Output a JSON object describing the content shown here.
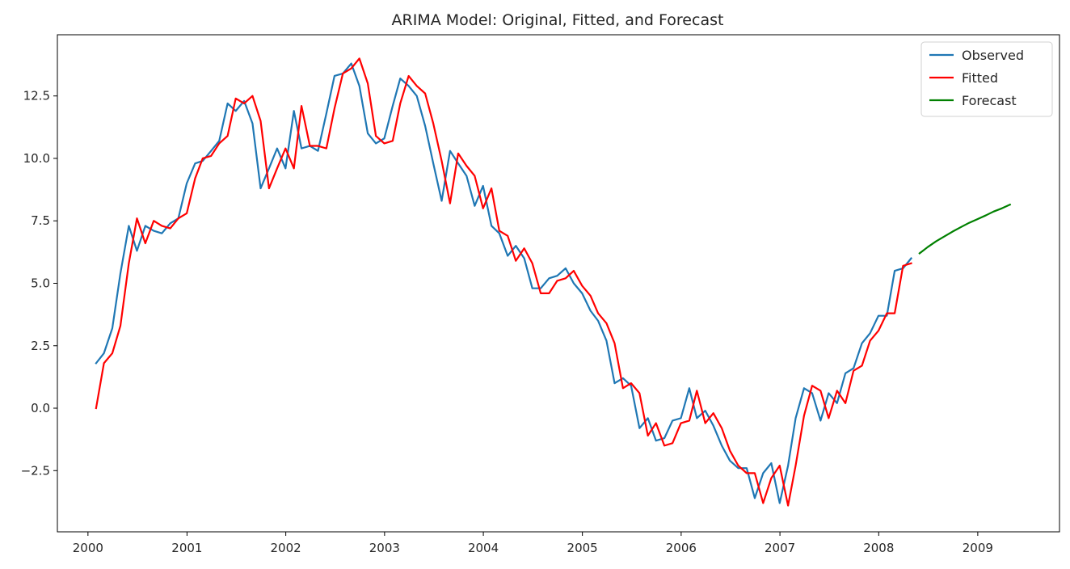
{
  "chart_data": {
    "type": "line",
    "title": "ARIMA Model: Original, Fitted, and Forecast",
    "xlabel": "",
    "ylabel": "",
    "x_axis": "date",
    "xlim": [
      "1999-09-10",
      "2009-10-30"
    ],
    "ylim": [
      -4.95,
      14.95
    ],
    "x_ticks": [
      "2000",
      "2001",
      "2002",
      "2003",
      "2004",
      "2005",
      "2006",
      "2007",
      "2008",
      "2009"
    ],
    "y_ticks": [
      -2.5,
      0.0,
      2.5,
      5.0,
      7.5,
      10.0,
      12.5
    ],
    "y_tick_labels": [
      "−2.5",
      "0.0",
      "2.5",
      "5.0",
      "7.5",
      "10.0",
      "12.5"
    ],
    "grid": false,
    "legend": {
      "position": "top-right"
    },
    "series": [
      {
        "name": "Observed",
        "color": "#1f77b4",
        "points": [
          [
            "2000-01-31",
            1.8
          ],
          [
            "2000-02-29",
            2.2
          ],
          [
            "2000-03-31",
            3.2
          ],
          [
            "2000-04-30",
            5.4
          ],
          [
            "2000-05-31",
            7.3
          ],
          [
            "2000-06-30",
            6.3
          ],
          [
            "2000-07-31",
            7.3
          ],
          [
            "2000-08-31",
            7.1
          ],
          [
            "2000-09-30",
            7.0
          ],
          [
            "2000-10-31",
            7.4
          ],
          [
            "2000-11-30",
            7.6
          ],
          [
            "2000-12-31",
            9.0
          ],
          [
            "2001-01-31",
            9.8
          ],
          [
            "2001-02-28",
            9.9
          ],
          [
            "2001-03-31",
            10.3
          ],
          [
            "2001-04-30",
            10.7
          ],
          [
            "2001-05-31",
            12.2
          ],
          [
            "2001-06-30",
            11.9
          ],
          [
            "2001-07-31",
            12.3
          ],
          [
            "2001-08-31",
            11.4
          ],
          [
            "2001-09-30",
            8.8
          ],
          [
            "2001-10-31",
            9.6
          ],
          [
            "2001-11-30",
            10.4
          ],
          [
            "2001-12-31",
            9.6
          ],
          [
            "2002-01-31",
            11.9
          ],
          [
            "2002-02-28",
            10.4
          ],
          [
            "2002-03-31",
            10.5
          ],
          [
            "2002-04-30",
            10.3
          ],
          [
            "2002-05-31",
            11.8
          ],
          [
            "2002-06-30",
            13.3
          ],
          [
            "2002-07-31",
            13.4
          ],
          [
            "2002-08-31",
            13.8
          ],
          [
            "2002-09-30",
            12.9
          ],
          [
            "2002-10-31",
            11.0
          ],
          [
            "2002-11-30",
            10.6
          ],
          [
            "2002-12-31",
            10.8
          ],
          [
            "2003-01-31",
            12.1
          ],
          [
            "2003-02-28",
            13.2
          ],
          [
            "2003-03-31",
            12.9
          ],
          [
            "2003-04-30",
            12.5
          ],
          [
            "2003-05-31",
            11.3
          ],
          [
            "2003-06-30",
            9.8
          ],
          [
            "2003-07-31",
            8.3
          ],
          [
            "2003-08-31",
            10.3
          ],
          [
            "2003-09-30",
            9.8
          ],
          [
            "2003-10-31",
            9.3
          ],
          [
            "2003-11-30",
            8.1
          ],
          [
            "2003-12-31",
            8.9
          ],
          [
            "2004-01-31",
            7.3
          ],
          [
            "2004-02-29",
            7.0
          ],
          [
            "2004-03-31",
            6.1
          ],
          [
            "2004-04-30",
            6.5
          ],
          [
            "2004-05-31",
            6.0
          ],
          [
            "2004-06-30",
            4.8
          ],
          [
            "2004-07-31",
            4.8
          ],
          [
            "2004-08-31",
            5.2
          ],
          [
            "2004-09-30",
            5.3
          ],
          [
            "2004-10-31",
            5.6
          ],
          [
            "2004-11-30",
            5.0
          ],
          [
            "2004-12-31",
            4.6
          ],
          [
            "2005-01-31",
            3.9
          ],
          [
            "2005-02-28",
            3.5
          ],
          [
            "2005-03-31",
            2.7
          ],
          [
            "2005-04-30",
            1.0
          ],
          [
            "2005-05-31",
            1.2
          ],
          [
            "2005-06-30",
            0.9
          ],
          [
            "2005-07-31",
            -0.8
          ],
          [
            "2005-08-31",
            -0.4
          ],
          [
            "2005-09-30",
            -1.3
          ],
          [
            "2005-10-31",
            -1.2
          ],
          [
            "2005-11-30",
            -0.5
          ],
          [
            "2005-12-31",
            -0.4
          ],
          [
            "2006-01-31",
            0.8
          ],
          [
            "2006-02-28",
            -0.4
          ],
          [
            "2006-03-31",
            -0.1
          ],
          [
            "2006-04-30",
            -0.7
          ],
          [
            "2006-05-31",
            -1.5
          ],
          [
            "2006-06-30",
            -2.1
          ],
          [
            "2006-07-31",
            -2.4
          ],
          [
            "2006-08-31",
            -2.4
          ],
          [
            "2006-09-30",
            -3.6
          ],
          [
            "2006-10-31",
            -2.6
          ],
          [
            "2006-11-30",
            -2.2
          ],
          [
            "2006-12-31",
            -3.8
          ],
          [
            "2007-01-31",
            -2.3
          ],
          [
            "2007-02-28",
            -0.4
          ],
          [
            "2007-03-31",
            0.8
          ],
          [
            "2007-04-30",
            0.6
          ],
          [
            "2007-05-31",
            -0.5
          ],
          [
            "2007-06-30",
            0.6
          ],
          [
            "2007-07-31",
            0.2
          ],
          [
            "2007-08-31",
            1.4
          ],
          [
            "2007-09-30",
            1.6
          ],
          [
            "2007-10-31",
            2.6
          ],
          [
            "2007-11-30",
            3.0
          ],
          [
            "2007-12-31",
            3.7
          ],
          [
            "2008-01-31",
            3.7
          ],
          [
            "2008-02-29",
            5.5
          ],
          [
            "2008-03-31",
            5.6
          ],
          [
            "2008-04-30",
            6.0
          ]
        ]
      },
      {
        "name": "Fitted",
        "color": "#ff0000",
        "points": [
          [
            "2000-01-31",
            0.0
          ],
          [
            "2000-02-29",
            1.8
          ],
          [
            "2000-03-31",
            2.2
          ],
          [
            "2000-04-30",
            3.3
          ],
          [
            "2000-05-31",
            5.8
          ],
          [
            "2000-06-30",
            7.6
          ],
          [
            "2000-07-31",
            6.6
          ],
          [
            "2000-08-31",
            7.5
          ],
          [
            "2000-09-30",
            7.3
          ],
          [
            "2000-10-31",
            7.2
          ],
          [
            "2000-11-30",
            7.6
          ],
          [
            "2000-12-31",
            7.8
          ],
          [
            "2001-01-31",
            9.2
          ],
          [
            "2001-02-28",
            10.0
          ],
          [
            "2001-03-31",
            10.1
          ],
          [
            "2001-04-30",
            10.6
          ],
          [
            "2001-05-31",
            10.9
          ],
          [
            "2001-06-30",
            12.4
          ],
          [
            "2001-07-31",
            12.2
          ],
          [
            "2001-08-31",
            12.5
          ],
          [
            "2001-09-30",
            11.5
          ],
          [
            "2001-10-31",
            8.8
          ],
          [
            "2001-11-30",
            9.6
          ],
          [
            "2001-12-31",
            10.4
          ],
          [
            "2002-01-31",
            9.6
          ],
          [
            "2002-02-28",
            12.1
          ],
          [
            "2002-03-31",
            10.5
          ],
          [
            "2002-04-30",
            10.5
          ],
          [
            "2002-05-31",
            10.4
          ],
          [
            "2002-06-30",
            12.0
          ],
          [
            "2002-07-31",
            13.4
          ],
          [
            "2002-08-31",
            13.6
          ],
          [
            "2002-09-30",
            14.0
          ],
          [
            "2002-10-31",
            13.0
          ],
          [
            "2002-11-30",
            10.9
          ],
          [
            "2002-12-31",
            10.6
          ],
          [
            "2003-01-31",
            10.7
          ],
          [
            "2003-02-28",
            12.2
          ],
          [
            "2003-03-31",
            13.3
          ],
          [
            "2003-04-30",
            12.9
          ],
          [
            "2003-05-31",
            12.6
          ],
          [
            "2003-06-30",
            11.4
          ],
          [
            "2003-07-31",
            9.9
          ],
          [
            "2003-08-31",
            8.2
          ],
          [
            "2003-09-30",
            10.2
          ],
          [
            "2003-10-31",
            9.7
          ],
          [
            "2003-11-30",
            9.3
          ],
          [
            "2003-12-31",
            8.0
          ],
          [
            "2004-01-31",
            8.8
          ],
          [
            "2004-02-29",
            7.1
          ],
          [
            "2004-03-31",
            6.9
          ],
          [
            "2004-04-30",
            5.9
          ],
          [
            "2004-05-31",
            6.4
          ],
          [
            "2004-06-30",
            5.8
          ],
          [
            "2004-07-31",
            4.6
          ],
          [
            "2004-08-31",
            4.6
          ],
          [
            "2004-09-30",
            5.1
          ],
          [
            "2004-10-31",
            5.2
          ],
          [
            "2004-11-30",
            5.5
          ],
          [
            "2004-12-31",
            4.9
          ],
          [
            "2005-01-31",
            4.5
          ],
          [
            "2005-02-28",
            3.8
          ],
          [
            "2005-03-31",
            3.4
          ],
          [
            "2005-04-30",
            2.6
          ],
          [
            "2005-05-31",
            0.8
          ],
          [
            "2005-06-30",
            1.0
          ],
          [
            "2005-07-31",
            0.6
          ],
          [
            "2005-08-31",
            -1.1
          ],
          [
            "2005-09-30",
            -0.6
          ],
          [
            "2005-10-31",
            -1.5
          ],
          [
            "2005-11-30",
            -1.4
          ],
          [
            "2005-12-31",
            -0.6
          ],
          [
            "2006-01-31",
            -0.5
          ],
          [
            "2006-02-28",
            0.7
          ],
          [
            "2006-03-31",
            -0.6
          ],
          [
            "2006-04-30",
            -0.2
          ],
          [
            "2006-05-31",
            -0.8
          ],
          [
            "2006-06-30",
            -1.7
          ],
          [
            "2006-07-31",
            -2.3
          ],
          [
            "2006-08-31",
            -2.6
          ],
          [
            "2006-09-30",
            -2.6
          ],
          [
            "2006-10-31",
            -3.8
          ],
          [
            "2006-11-30",
            -2.8
          ],
          [
            "2006-12-31",
            -2.3
          ],
          [
            "2007-01-31",
            -3.9
          ],
          [
            "2007-02-28",
            -2.3
          ],
          [
            "2007-03-31",
            -0.3
          ],
          [
            "2007-04-30",
            0.9
          ],
          [
            "2007-05-31",
            0.7
          ],
          [
            "2007-06-30",
            -0.4
          ],
          [
            "2007-07-31",
            0.7
          ],
          [
            "2007-08-31",
            0.2
          ],
          [
            "2007-09-30",
            1.5
          ],
          [
            "2007-10-31",
            1.7
          ],
          [
            "2007-11-30",
            2.7
          ],
          [
            "2007-12-31",
            3.1
          ],
          [
            "2008-01-31",
            3.8
          ],
          [
            "2008-02-29",
            3.8
          ],
          [
            "2008-03-31",
            5.7
          ],
          [
            "2008-04-30",
            5.8
          ]
        ]
      },
      {
        "name": "Forecast",
        "color": "#008000",
        "points": [
          [
            "2008-05-31",
            6.2
          ],
          [
            "2008-06-30",
            6.45
          ],
          [
            "2008-07-31",
            6.68
          ],
          [
            "2008-08-31",
            6.88
          ],
          [
            "2008-09-30",
            7.07
          ],
          [
            "2008-10-31",
            7.25
          ],
          [
            "2008-11-30",
            7.42
          ],
          [
            "2008-12-31",
            7.57
          ],
          [
            "2009-01-31",
            7.72
          ],
          [
            "2009-02-28",
            7.87
          ],
          [
            "2009-03-31",
            8.0
          ],
          [
            "2009-04-30",
            8.15
          ]
        ]
      }
    ]
  }
}
